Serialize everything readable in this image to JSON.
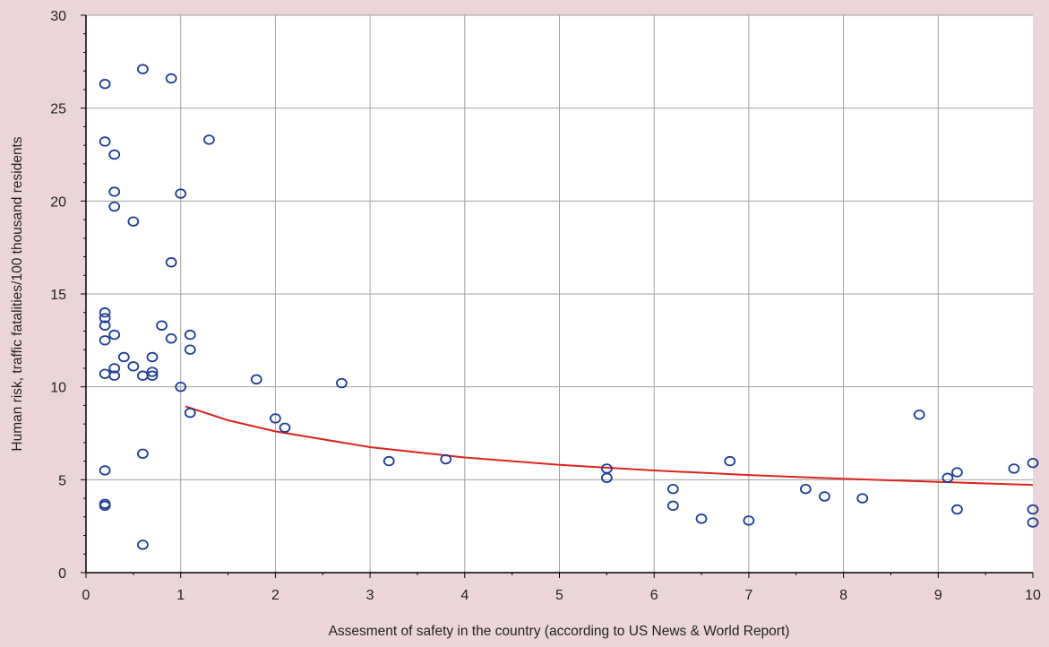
{
  "colors": {
    "page_background": "#ecd5d8",
    "plot_background": "#ffffff",
    "grid": "#a0a0a0",
    "axis": "#000000",
    "marker": "#1f3d99",
    "trend_line": "#d9251d"
  },
  "chart_data": {
    "type": "scatter",
    "title": "",
    "xlabel": "Assesment of safety in the country (according to US News & World Report)",
    "ylabel": "Human risk, traffic fatalities/100 thousand residents",
    "xlim": [
      0,
      10
    ],
    "ylim": [
      0,
      30
    ],
    "x_ticks": [
      "0",
      "1",
      "2",
      "3",
      "4",
      "5",
      "6",
      "7",
      "8",
      "9",
      "10"
    ],
    "y_ticks": [
      "0",
      "5",
      "10",
      "15",
      "20",
      "25",
      "30"
    ],
    "grid": true,
    "legend": "none",
    "points": [
      {
        "x": 0.2,
        "y": 26.3
      },
      {
        "x": 0.6,
        "y": 27.1
      },
      {
        "x": 0.9,
        "y": 26.6
      },
      {
        "x": 0.2,
        "y": 23.2
      },
      {
        "x": 0.3,
        "y": 22.5
      },
      {
        "x": 1.3,
        "y": 23.3
      },
      {
        "x": 0.3,
        "y": 20.5
      },
      {
        "x": 1.0,
        "y": 20.4
      },
      {
        "x": 0.3,
        "y": 19.7
      },
      {
        "x": 0.5,
        "y": 18.9
      },
      {
        "x": 0.9,
        "y": 16.7
      },
      {
        "x": 0.2,
        "y": 14.0
      },
      {
        "x": 0.2,
        "y": 13.7
      },
      {
        "x": 0.2,
        "y": 13.3
      },
      {
        "x": 0.8,
        "y": 13.3
      },
      {
        "x": 0.3,
        "y": 12.8
      },
      {
        "x": 1.1,
        "y": 12.8
      },
      {
        "x": 0.2,
        "y": 12.5
      },
      {
        "x": 0.9,
        "y": 12.6
      },
      {
        "x": 1.1,
        "y": 12.0
      },
      {
        "x": 0.4,
        "y": 11.6
      },
      {
        "x": 0.7,
        "y": 11.6
      },
      {
        "x": 0.5,
        "y": 11.1
      },
      {
        "x": 0.3,
        "y": 11.0
      },
      {
        "x": 0.7,
        "y": 10.8
      },
      {
        "x": 0.2,
        "y": 10.7
      },
      {
        "x": 0.3,
        "y": 10.6
      },
      {
        "x": 0.6,
        "y": 10.6
      },
      {
        "x": 0.7,
        "y": 10.6
      },
      {
        "x": 1.8,
        "y": 10.4
      },
      {
        "x": 2.7,
        "y": 10.2
      },
      {
        "x": 1.0,
        "y": 10.0
      },
      {
        "x": 1.1,
        "y": 8.6
      },
      {
        "x": 2.0,
        "y": 8.3
      },
      {
        "x": 2.1,
        "y": 7.8
      },
      {
        "x": 0.6,
        "y": 6.4
      },
      {
        "x": 3.2,
        "y": 6.0
      },
      {
        "x": 3.8,
        "y": 6.1
      },
      {
        "x": 0.2,
        "y": 5.5
      },
      {
        "x": 0.2,
        "y": 3.7
      },
      {
        "x": 0.2,
        "y": 3.6
      },
      {
        "x": 0.6,
        "y": 1.5
      },
      {
        "x": 5.5,
        "y": 5.6
      },
      {
        "x": 5.5,
        "y": 5.1
      },
      {
        "x": 6.2,
        "y": 4.5
      },
      {
        "x": 6.2,
        "y": 3.6
      },
      {
        "x": 6.5,
        "y": 2.9
      },
      {
        "x": 6.8,
        "y": 6.0
      },
      {
        "x": 7.0,
        "y": 2.8
      },
      {
        "x": 7.6,
        "y": 4.5
      },
      {
        "x": 7.8,
        "y": 4.1
      },
      {
        "x": 8.2,
        "y": 4.0
      },
      {
        "x": 8.8,
        "y": 8.5
      },
      {
        "x": 9.1,
        "y": 5.1
      },
      {
        "x": 9.2,
        "y": 5.4
      },
      {
        "x": 9.2,
        "y": 3.4
      },
      {
        "x": 9.8,
        "y": 5.6
      },
      {
        "x": 10.0,
        "y": 5.9
      },
      {
        "x": 10.0,
        "y": 3.4
      },
      {
        "x": 10.0,
        "y": 2.7
      }
    ],
    "trend_line": {
      "type": "power",
      "x_range": [
        1.05,
        10.0
      ],
      "points": [
        {
          "x": 1.05,
          "y": 8.95
        },
        {
          "x": 1.5,
          "y": 8.2
        },
        {
          "x": 2.0,
          "y": 7.6
        },
        {
          "x": 3.0,
          "y": 6.75
        },
        {
          "x": 4.0,
          "y": 6.2
        },
        {
          "x": 5.0,
          "y": 5.8
        },
        {
          "x": 6.0,
          "y": 5.5
        },
        {
          "x": 7.0,
          "y": 5.25
        },
        {
          "x": 8.0,
          "y": 5.05
        },
        {
          "x": 9.0,
          "y": 4.88
        },
        {
          "x": 10.0,
          "y": 4.72
        }
      ]
    }
  }
}
